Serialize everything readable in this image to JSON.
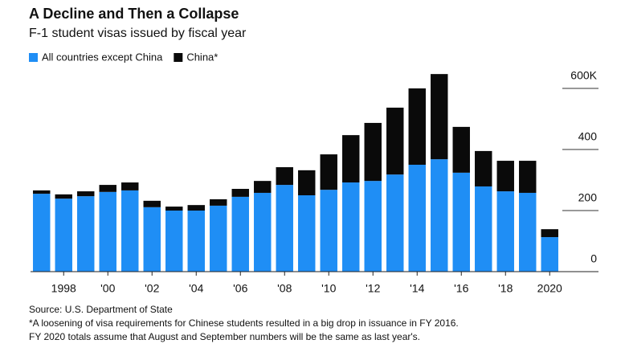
{
  "chart_data": {
    "type": "stacked_bar",
    "title": "A Decline and Then a Collapse",
    "subtitle": "F-1 student visas issued by fiscal year",
    "categories": [
      null,
      "1998",
      null,
      "'00",
      null,
      "'02",
      null,
      "'04",
      null,
      "'06",
      null,
      "'08",
      null,
      "'10",
      null,
      "'12",
      null,
      "'14",
      null,
      "'16",
      null,
      "'18",
      null,
      "2020"
    ],
    "series": [
      {
        "name": "All countries except China",
        "color": "#1f8ef5",
        "values": [
          255,
          239,
          247,
          261,
          266,
          211,
          200,
          200,
          216,
          245,
          258,
          284,
          250,
          268,
          292,
          297,
          318,
          350,
          368,
          324,
          279,
          263,
          258,
          113
        ]
      },
      {
        "name": "China*",
        "color": "#0a0a0a",
        "values": [
          11,
          14,
          16,
          23,
          26,
          21,
          13,
          18,
          21,
          26,
          39,
          58,
          82,
          116,
          155,
          190,
          219,
          250,
          279,
          150,
          116,
          100,
          105,
          26
        ]
      }
    ],
    "ylim": [
      0,
      650
    ],
    "yticks": [
      0,
      200,
      400,
      {
        "value": 600,
        "label": "600K"
      }
    ],
    "legend": "top-left",
    "source": "Source: U.S. Department of State",
    "notes": [
      "*A loosening of visa requirements for Chinese students resulted in a big drop in issuance in FY 2016.",
      "FY 2020 totals assume that August and September numbers will be the same as last year's."
    ]
  }
}
